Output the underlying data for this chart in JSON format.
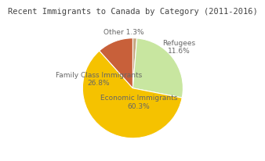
{
  "title": "Recent Immigrants to Canada by Category (2011-2016)",
  "slices": [
    {
      "label": "Other 1.3%",
      "value": 1.3,
      "color": "#C8A882"
    },
    {
      "label": "Family Class Immigrants\n26.8%",
      "value": 26.8,
      "color": "#C8E6A0"
    },
    {
      "label": "Economic Immigrants\n60.3%",
      "value": 60.3,
      "color": "#F5C200"
    },
    {
      "label": "Refugees\n11.6%",
      "value": 11.6,
      "color": "#C8603A"
    }
  ],
  "background_color": "#FFFFFF",
  "title_fontsize": 7.5,
  "label_fontsize": 6.5,
  "startangle": 90,
  "label_color": "#666666"
}
